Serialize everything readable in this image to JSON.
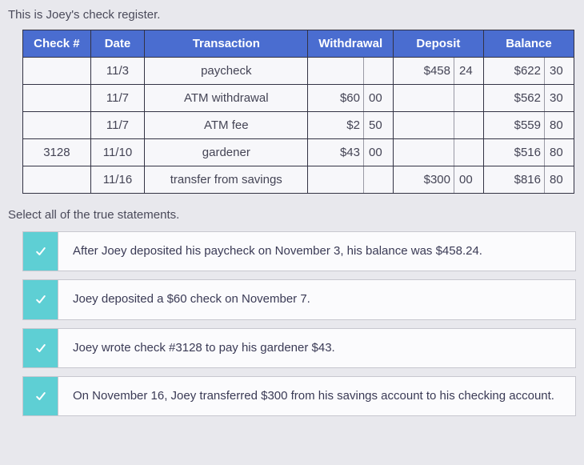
{
  "intro": "This is Joey's check register.",
  "table": {
    "headers": {
      "check": "Check #",
      "date": "Date",
      "transaction": "Transaction",
      "withdrawal": "Withdrawal",
      "deposit": "Deposit",
      "balance": "Balance"
    },
    "rows": [
      {
        "check": "",
        "date": "11/3",
        "transaction": "paycheck",
        "wd": "",
        "wc": "",
        "dd": "$458",
        "dc": "24",
        "bd": "$622",
        "bc": "30"
      },
      {
        "check": "",
        "date": "11/7",
        "transaction": "ATM withdrawal",
        "wd": "$60",
        "wc": "00",
        "dd": "",
        "dc": "",
        "bd": "$562",
        "bc": "30"
      },
      {
        "check": "",
        "date": "11/7",
        "transaction": "ATM fee",
        "wd": "$2",
        "wc": "50",
        "dd": "",
        "dc": "",
        "bd": "$559",
        "bc": "80"
      },
      {
        "check": "3128",
        "date": "11/10",
        "transaction": "gardener",
        "wd": "$43",
        "wc": "00",
        "dd": "",
        "dc": "",
        "bd": "$516",
        "bc": "80"
      },
      {
        "check": "",
        "date": "11/16",
        "transaction": "transfer from savings",
        "wd": "",
        "wc": "",
        "dd": "$300",
        "dc": "00",
        "bd": "$816",
        "bc": "80"
      }
    ]
  },
  "prompt": "Select all of the true statements.",
  "options": [
    "After Joey deposited his paycheck on November 3, his balance was $458.24.",
    "Joey deposited a $60 check on November 7.",
    "Joey wrote check #3128 to pay his gardener $43.",
    "On November 16, Joey transferred $300 from his savings account to his checking account."
  ],
  "colors": {
    "table_header_bg": "#4a6dd0",
    "table_header_fg": "#ffffff",
    "checkbox_bg": "#5ecfd4",
    "page_bg": "#e8e8ed",
    "option_bg": "#fbfbfd",
    "border": "#c7c7cf"
  }
}
